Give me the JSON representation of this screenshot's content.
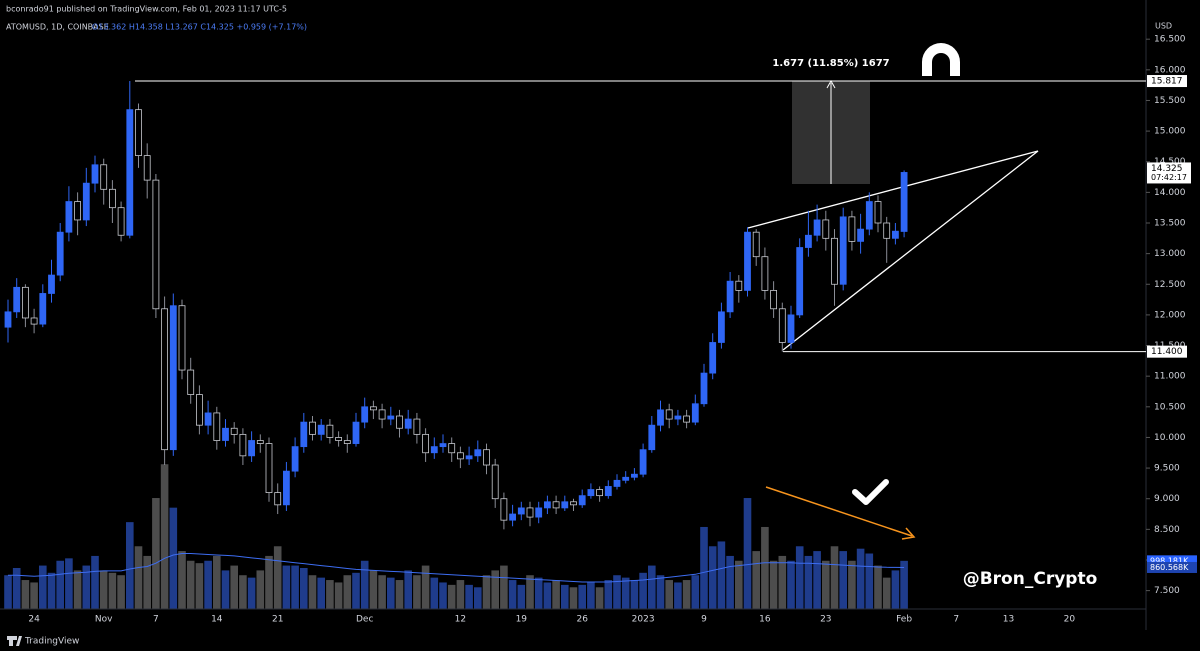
{
  "chart_data": {
    "type": "candlestick",
    "header": "bconrado91 published on TradingView.com, Feb 01, 2023 11:17 UTC-5",
    "symbol": "ATOMUSD, 1D, COINBASE",
    "ohlc_text": "O13.362 H14.358 L13.267 C14.325 +0.959 (+7.17%)",
    "currency": "USD",
    "measure": "1.677 (11.85%) 1677",
    "watermark": "@Bron_Crypto",
    "brand": "TradingView",
    "color_up": "#2f66f5",
    "color_down": "#000000",
    "volume_up_color": "#1f3c8c",
    "volume_down_color": "#4d4d4d",
    "volume_ma_color": "#3d6df2",
    "categories": [
      null,
      null,
      null,
      "24",
      null,
      null,
      null,
      null,
      null,
      null,
      null,
      "Nov",
      null,
      null,
      null,
      null,
      null,
      "7",
      null,
      null,
      null,
      null,
      null,
      null,
      "14",
      null,
      null,
      null,
      null,
      null,
      null,
      "21",
      null,
      null,
      null,
      null,
      null,
      null,
      null,
      null,
      null,
      "Dec",
      null,
      null,
      null,
      null,
      null,
      null,
      null,
      null,
      null,
      null,
      "12",
      null,
      null,
      null,
      null,
      null,
      null,
      "19",
      null,
      null,
      null,
      null,
      null,
      null,
      "26",
      null,
      null,
      null,
      null,
      null,
      null,
      "2023",
      null,
      null,
      null,
      null,
      null,
      null,
      "9",
      null,
      null,
      null,
      null,
      null,
      null,
      "16",
      null,
      null,
      null,
      null,
      null,
      null,
      "23",
      null,
      null,
      null,
      null,
      null,
      null,
      null,
      null,
      "Feb",
      null,
      null,
      null,
      null,
      null,
      "7",
      null,
      null,
      null,
      null,
      null,
      "13",
      null,
      null,
      null,
      null,
      null,
      null,
      "20"
    ],
    "open": [
      11.8,
      12.05,
      12.45,
      11.95,
      11.85,
      12.35,
      12.65,
      13.35,
      13.85,
      13.55,
      14.15,
      14.45,
      14.05,
      13.75,
      13.3,
      15.35,
      14.6,
      14.2,
      12.1,
      9.8,
      12.15,
      11.1,
      10.7,
      10.2,
      10.4,
      9.95,
      10.15,
      10.05,
      9.7,
      9.95,
      9.9,
      9.1,
      8.9,
      9.45,
      9.85,
      10.25,
      10.05,
      10.2,
      10.0,
      9.95,
      9.9,
      10.25,
      10.5,
      10.45,
      10.3,
      10.35,
      10.15,
      10.3,
      10.05,
      9.75,
      9.85,
      9.9,
      9.75,
      9.65,
      9.7,
      9.8,
      9.55,
      9.0,
      8.65,
      8.75,
      8.85,
      8.7,
      8.85,
      8.95,
      8.85,
      8.95,
      8.9,
      9.05,
      9.15,
      9.05,
      9.2,
      9.3,
      9.35,
      9.4,
      9.8,
      10.2,
      10.45,
      10.3,
      10.35,
      10.25,
      10.55,
      11.05,
      11.55,
      12.05,
      12.55,
      12.4,
      13.35,
      12.95,
      12.4,
      12.1,
      11.55,
      12.0,
      13.1,
      13.3,
      13.55,
      13.25,
      12.5,
      13.6,
      13.2,
      13.4,
      13.85,
      13.5,
      13.25,
      13.362,
      null,
      null,
      null,
      null,
      null,
      null,
      null,
      null,
      null,
      null,
      null,
      null,
      null,
      null,
      null,
      null,
      null,
      null,
      null
    ],
    "high": [
      12.25,
      12.6,
      12.5,
      12.1,
      12.5,
      12.9,
      13.5,
      14.1,
      14.0,
      14.4,
      14.6,
      14.55,
      14.2,
      13.85,
      15.817,
      15.45,
      14.8,
      14.3,
      12.3,
      12.35,
      12.25,
      11.3,
      10.85,
      10.6,
      10.5,
      10.3,
      10.25,
      10.15,
      10.1,
      10.05,
      10.0,
      9.25,
      9.6,
      10.0,
      10.4,
      10.35,
      10.3,
      10.3,
      10.1,
      10.05,
      10.4,
      10.65,
      10.6,
      10.55,
      10.5,
      10.45,
      10.45,
      10.4,
      10.15,
      10.0,
      10.05,
      10.0,
      9.85,
      9.85,
      9.95,
      9.9,
      9.65,
      9.1,
      8.9,
      8.95,
      8.95,
      8.95,
      9.05,
      9.05,
      9.05,
      9.0,
      9.15,
      9.25,
      9.2,
      9.3,
      9.4,
      9.45,
      9.5,
      9.9,
      10.35,
      10.6,
      10.55,
      10.45,
      10.45,
      10.7,
      11.2,
      11.7,
      12.2,
      12.7,
      12.65,
      13.43,
      13.4,
      13.1,
      12.55,
      12.2,
      12.15,
      13.25,
      13.7,
      13.8,
      13.7,
      13.4,
      13.75,
      13.7,
      13.65,
      14.0,
      13.95,
      13.6,
      13.5,
      14.358,
      null,
      null,
      null,
      null,
      null,
      null,
      null,
      null,
      null,
      null,
      null,
      null,
      null,
      null,
      null,
      null,
      null,
      null,
      null
    ],
    "low": [
      11.55,
      11.95,
      11.8,
      11.7,
      11.8,
      12.2,
      12.55,
      13.2,
      13.3,
      13.45,
      14.0,
      13.8,
      13.5,
      13.2,
      13.25,
      14.4,
      13.9,
      11.95,
      9.55,
      9.7,
      10.95,
      10.55,
      10.05,
      10.05,
      9.8,
      9.85,
      9.9,
      9.55,
      9.6,
      9.75,
      8.95,
      8.75,
      8.8,
      9.35,
      9.75,
      9.95,
      9.95,
      9.9,
      9.85,
      9.75,
      9.85,
      10.15,
      10.3,
      10.15,
      10.2,
      10.0,
      10.05,
      9.9,
      9.6,
      9.65,
      9.75,
      9.6,
      9.5,
      9.55,
      9.6,
      9.4,
      8.85,
      8.5,
      8.55,
      8.65,
      8.55,
      8.6,
      8.75,
      8.75,
      8.8,
      8.8,
      8.85,
      9.0,
      8.95,
      9.0,
      9.15,
      9.25,
      9.3,
      9.35,
      9.75,
      10.1,
      10.15,
      10.2,
      10.15,
      10.2,
      10.5,
      10.95,
      11.45,
      11.95,
      12.2,
      12.3,
      12.8,
      12.25,
      11.95,
      11.4,
      11.45,
      11.95,
      12.95,
      13.2,
      13.05,
      12.15,
      12.4,
      13.05,
      13.0,
      13.3,
      13.35,
      12.85,
      13.15,
      13.267,
      null,
      null,
      null,
      null,
      null,
      null,
      null,
      null,
      null,
      null,
      null,
      null,
      null,
      null,
      null,
      null,
      null,
      null,
      null
    ],
    "close": [
      12.05,
      12.45,
      11.95,
      11.85,
      12.35,
      12.65,
      13.35,
      13.85,
      13.55,
      14.15,
      14.45,
      14.05,
      13.75,
      13.3,
      15.35,
      14.6,
      14.2,
      12.1,
      9.8,
      12.15,
      11.1,
      10.7,
      10.2,
      10.4,
      9.95,
      10.15,
      10.05,
      9.7,
      9.95,
      9.9,
      9.1,
      8.9,
      9.45,
      9.85,
      10.25,
      10.05,
      10.2,
      10.0,
      9.95,
      9.9,
      10.25,
      10.5,
      10.45,
      10.3,
      10.35,
      10.15,
      10.3,
      10.05,
      9.75,
      9.85,
      9.9,
      9.75,
      9.65,
      9.7,
      9.8,
      9.55,
      9.0,
      8.65,
      8.75,
      8.85,
      8.7,
      8.85,
      8.95,
      8.85,
      8.95,
      8.9,
      9.05,
      9.15,
      9.05,
      9.2,
      9.3,
      9.35,
      9.4,
      9.8,
      10.2,
      10.45,
      10.3,
      10.35,
      10.25,
      10.55,
      11.05,
      11.55,
      12.05,
      12.55,
      12.4,
      13.35,
      12.95,
      12.4,
      12.1,
      11.55,
      12.0,
      13.1,
      13.3,
      13.55,
      13.25,
      12.5,
      13.6,
      13.2,
      13.4,
      13.85,
      13.5,
      13.25,
      13.366,
      14.325,
      null,
      null,
      null,
      null,
      null,
      null,
      null,
      null,
      null,
      null,
      null,
      null,
      null,
      null,
      null,
      null,
      null,
      null,
      null
    ],
    "volume": [
      700,
      850,
      600,
      550,
      900,
      750,
      1000,
      1050,
      800,
      900,
      1100,
      800,
      750,
      700,
      1800,
      1300,
      1100,
      2300,
      3000,
      2100,
      1200,
      1000,
      950,
      1000,
      1100,
      800,
      900,
      700,
      650,
      800,
      1100,
      1300,
      900,
      900,
      850,
      700,
      650,
      600,
      550,
      700,
      750,
      1000,
      800,
      700,
      650,
      600,
      800,
      700,
      900,
      650,
      550,
      500,
      600,
      500,
      450,
      700,
      800,
      900,
      600,
      500,
      700,
      650,
      550,
      600,
      500,
      450,
      500,
      550,
      450,
      600,
      700,
      650,
      600,
      750,
      900,
      700,
      600,
      550,
      600,
      700,
      1700,
      1300,
      1400,
      1100,
      1000,
      2300,
      1200,
      1700,
      1000,
      1100,
      1000,
      1300,
      1100,
      1200,
      1000,
      1300,
      1200,
      1000,
      1250,
      1150,
      900,
      650,
      800,
      998.181,
      null,
      null,
      null,
      null,
      null,
      null,
      null,
      null,
      null,
      null,
      null,
      null,
      null,
      null,
      null,
      null,
      null,
      null,
      null
    ],
    "volume_ma": [
      700,
      700,
      690,
      680,
      690,
      700,
      720,
      740,
      750,
      760,
      780,
      790,
      790,
      790,
      830,
      860,
      880,
      950,
      1050,
      1120,
      1150,
      1150,
      1140,
      1130,
      1120,
      1110,
      1100,
      1080,
      1060,
      1040,
      1020,
      1000,
      980,
      960,
      940,
      920,
      900,
      880,
      860,
      840,
      820,
      810,
      800,
      790,
      780,
      770,
      760,
      750,
      740,
      730,
      720,
      710,
      700,
      690,
      680,
      670,
      660,
      650,
      640,
      630,
      620,
      610,
      600,
      590,
      580,
      570,
      560,
      560,
      560,
      560,
      570,
      580,
      590,
      600,
      620,
      640,
      660,
      680,
      700,
      720,
      760,
      800,
      840,
      880,
      900,
      920,
      940,
      960,
      960,
      960,
      960,
      950,
      950,
      940,
      930,
      920,
      910,
      900,
      890,
      880,
      870,
      865,
      862,
      860.568,
      null,
      null,
      null,
      null,
      null,
      null,
      null,
      null,
      null,
      null,
      null,
      null,
      null,
      null,
      null,
      null,
      null,
      null,
      null
    ],
    "volume_last": {
      "value": 998.181,
      "label": "998.181K"
    },
    "volume_ma_last": {
      "value": 860.568,
      "label": "860.568K"
    },
    "ylim": [
      7.2,
      16.65
    ],
    "yticks": [
      {
        "value": 7.5,
        "label": "7.500"
      },
      {
        "value": 8,
        "label": "8.000"
      },
      {
        "value": 8.5,
        "label": "8.500"
      },
      {
        "value": 9,
        "label": "9.000"
      },
      {
        "value": 9.5,
        "label": "9.500"
      },
      {
        "value": 10,
        "label": "10.000"
      },
      {
        "value": 10.5,
        "label": "10.500"
      },
      {
        "value": 11,
        "label": "11.000"
      },
      {
        "value": 11.5,
        "label": "11.500"
      },
      {
        "value": 12,
        "label": "12.000"
      },
      {
        "value": 12.5,
        "label": "12.500"
      },
      {
        "value": 13,
        "label": "13.000"
      },
      {
        "value": 13.5,
        "label": "13.500"
      },
      {
        "value": 14,
        "label": "14.000"
      },
      {
        "value": 14.5,
        "label": "14.500"
      },
      {
        "value": 15,
        "label": "15.000"
      },
      {
        "value": 15.5,
        "label": "15.500"
      },
      {
        "value": 16,
        "label": "16.000"
      },
      {
        "value": 16.5,
        "label": "16.500"
      }
    ],
    "y2lim": [
      0,
      12000
    ],
    "levels": [
      15.817,
      {
        "value": 11.4,
        "label": "11.400"
      }
    ],
    "last_price": 14.325,
    "countdown": "07:42:17"
  }
}
